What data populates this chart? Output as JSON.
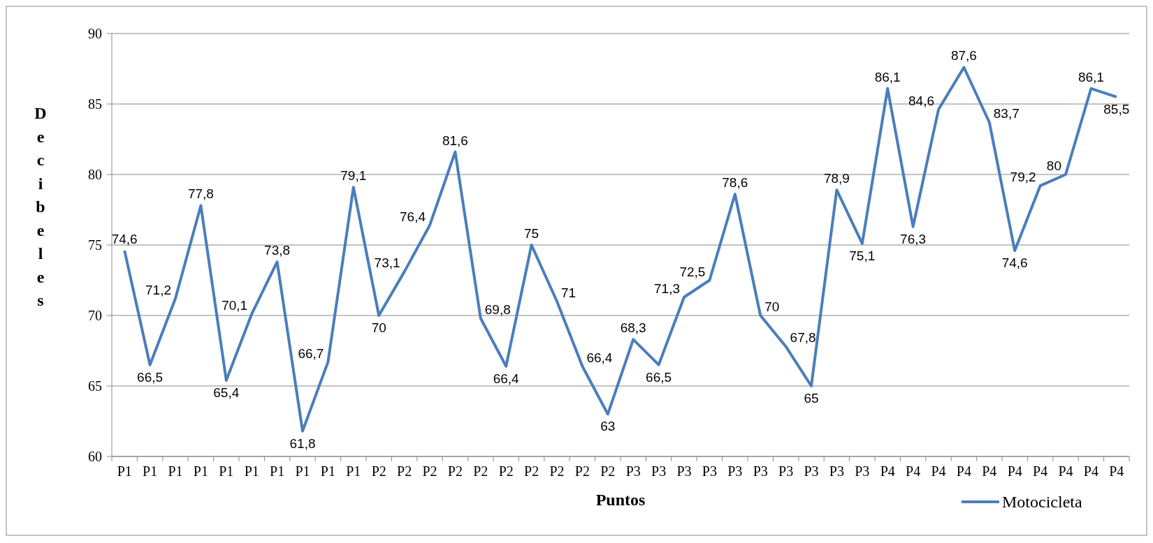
{
  "chart_data": {
    "type": "line",
    "xlabel": "Puntos",
    "ylabel": "Decibeles",
    "categories": [
      "P1",
      "P1",
      "P1",
      "P1",
      "P1",
      "P1",
      "P1",
      "P1",
      "P1",
      "P1",
      "P2",
      "P2",
      "P2",
      "P2",
      "P2",
      "P2",
      "P2",
      "P2",
      "P2",
      "P2",
      "P3",
      "P3",
      "P3",
      "P3",
      "P3",
      "P3",
      "P3",
      "P3",
      "P3",
      "P3",
      "P4",
      "P4",
      "P4",
      "P4",
      "P4",
      "P4",
      "P4",
      "P4",
      "P4",
      "P4"
    ],
    "series": [
      {
        "name": "Motocicleta",
        "color": "#4a7ebb",
        "values": [
          74.6,
          66.5,
          71.2,
          77.8,
          65.4,
          70.1,
          73.8,
          61.8,
          66.7,
          79.1,
          70,
          73.1,
          76.4,
          81.6,
          69.8,
          66.4,
          75,
          71,
          66.4,
          63,
          68.3,
          66.5,
          71.3,
          72.5,
          78.6,
          70,
          67.8,
          65,
          78.9,
          75.1,
          86.1,
          76.3,
          84.6,
          87.6,
          83.7,
          74.6,
          79.2,
          80,
          86.1,
          85.5
        ],
        "value_labels": [
          "74,6",
          "66,5",
          "71,2",
          "77,8",
          "65,4",
          "70,1",
          "73,8",
          "61,8",
          "66,7",
          "79,1",
          "70",
          "73,1",
          "76,4",
          "81,6",
          "69,8",
          "66,4",
          "75",
          "71",
          "66,4",
          "63",
          "68,3",
          "66,5",
          "71,3",
          "72,5",
          "78,6",
          "70",
          "67,8",
          "65",
          "78,9",
          "75,1",
          "86,1",
          "76,3",
          "84,6",
          "87,6",
          "83,7",
          "74,6",
          "79,2",
          "80",
          "86,1",
          "85,5"
        ]
      }
    ],
    "ylim": [
      60,
      90
    ],
    "yticks": [
      60,
      65,
      70,
      75,
      80,
      85,
      90
    ],
    "grid": "y",
    "legend": "bottom right",
    "marker": "none",
    "line_style": "solid"
  }
}
